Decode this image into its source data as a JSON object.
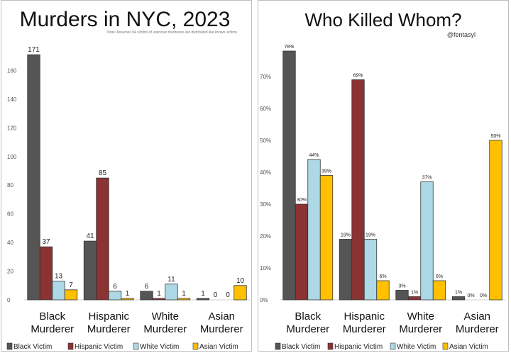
{
  "colors": {
    "black_victim": "#555555",
    "hispanic_victim": "#8b3333",
    "white_victim": "#add8e6",
    "asian_victim": "#ffc000"
  },
  "chart_data": [
    {
      "type": "bar",
      "title": "Murders in NYC, 2023",
      "note": "Note: Assumes 94 victims of unknown murderers are distributed like known victims",
      "categories": [
        "Black Murderer",
        "Hispanic Murderer",
        "White Murderer",
        "Asian Murderer"
      ],
      "series": [
        {
          "name": "Black Victim",
          "values": [
            171,
            41,
            6,
            1
          ]
        },
        {
          "name": "Hispanic Victim",
          "values": [
            37,
            85,
            1,
            0
          ]
        },
        {
          "name": "White Victim",
          "values": [
            13,
            6,
            11,
            0
          ]
        },
        {
          "name": "Asian Victim",
          "values": [
            7,
            1,
            1,
            10
          ]
        }
      ],
      "ylim": [
        0,
        180
      ],
      "yticks": [
        0,
        20,
        40,
        60,
        80,
        100,
        120,
        140,
        160
      ],
      "grid": false,
      "legend": "bottom"
    },
    {
      "type": "bar",
      "title": "Who Killed Whom?",
      "credit": "@fentasyl",
      "categories": [
        "Black Murderer",
        "Hispanic Murderer",
        "White Murderer",
        "Asian Murderer"
      ],
      "series": [
        {
          "name": "Black Victim",
          "values": [
            78,
            19,
            3,
            1
          ]
        },
        {
          "name": "Hispanic Victim",
          "values": [
            30,
            69,
            1,
            0
          ]
        },
        {
          "name": "White Victim",
          "values": [
            44,
            19,
            37,
            0
          ]
        },
        {
          "name": "Asian Victim",
          "values": [
            39,
            6,
            6,
            50
          ]
        }
      ],
      "value_suffix": "%",
      "ylim": [
        0,
        80
      ],
      "yticks": [
        0,
        10,
        20,
        30,
        40,
        50,
        60,
        70
      ],
      "ytick_labels": [
        "0%",
        "10%",
        "20%",
        "30%",
        "40%",
        "50%",
        "60%",
        "70%"
      ],
      "grid": false,
      "legend": "bottom"
    }
  ]
}
